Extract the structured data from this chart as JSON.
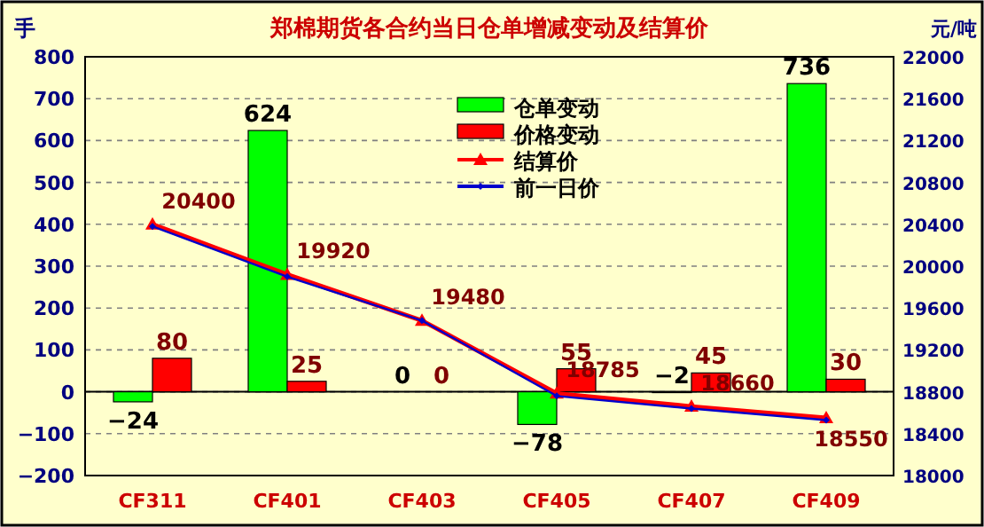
{
  "chart_data": {
    "type": "bar",
    "title": "郑棉期货各合约当日仓单增减变动及结算价",
    "ylabel": "手",
    "y2label": "元/吨",
    "categories": [
      "CF311",
      "CF401",
      "CF403",
      "CF405",
      "CF407",
      "CF409"
    ],
    "series": [
      {
        "name": "仓单变动",
        "color": "#00ff00",
        "values": [
          -24,
          624,
          0,
          -78,
          -2,
          736
        ],
        "value_labels": [
          "−24",
          "624",
          "0",
          "−78",
          "−2",
          "736"
        ]
      },
      {
        "name": "价格变动",
        "color": "#ff0000",
        "values": [
          80,
          25,
          0,
          55,
          45,
          30
        ],
        "value_labels": [
          "80",
          "25",
          "0",
          "55",
          "45",
          "30"
        ]
      },
      {
        "name": "结算价",
        "type": "line",
        "axis": "y2",
        "color": "#ff0000",
        "marker": "triangle",
        "values": [
          20400,
          19920,
          19480,
          18785,
          18660,
          18550
        ],
        "value_labels": [
          "20400",
          "19920",
          "19480",
          "18785",
          "18660",
          "18550"
        ]
      },
      {
        "name": "前一日价",
        "type": "line",
        "axis": "y2",
        "color": "#0000cc",
        "marker": "diamond",
        "values": [
          20380,
          19900,
          19480,
          18760,
          18640,
          18530
        ]
      }
    ],
    "ylim": [
      -200,
      800
    ],
    "yticks": [
      -200,
      -100,
      0,
      100,
      200,
      300,
      400,
      500,
      600,
      700,
      800
    ],
    "y2lim": [
      18000,
      22000
    ],
    "y2ticks": [
      18000,
      18400,
      18800,
      19200,
      19600,
      20000,
      20400,
      20800,
      21200,
      21600,
      22000
    ],
    "grid": "y",
    "legend": "top"
  }
}
